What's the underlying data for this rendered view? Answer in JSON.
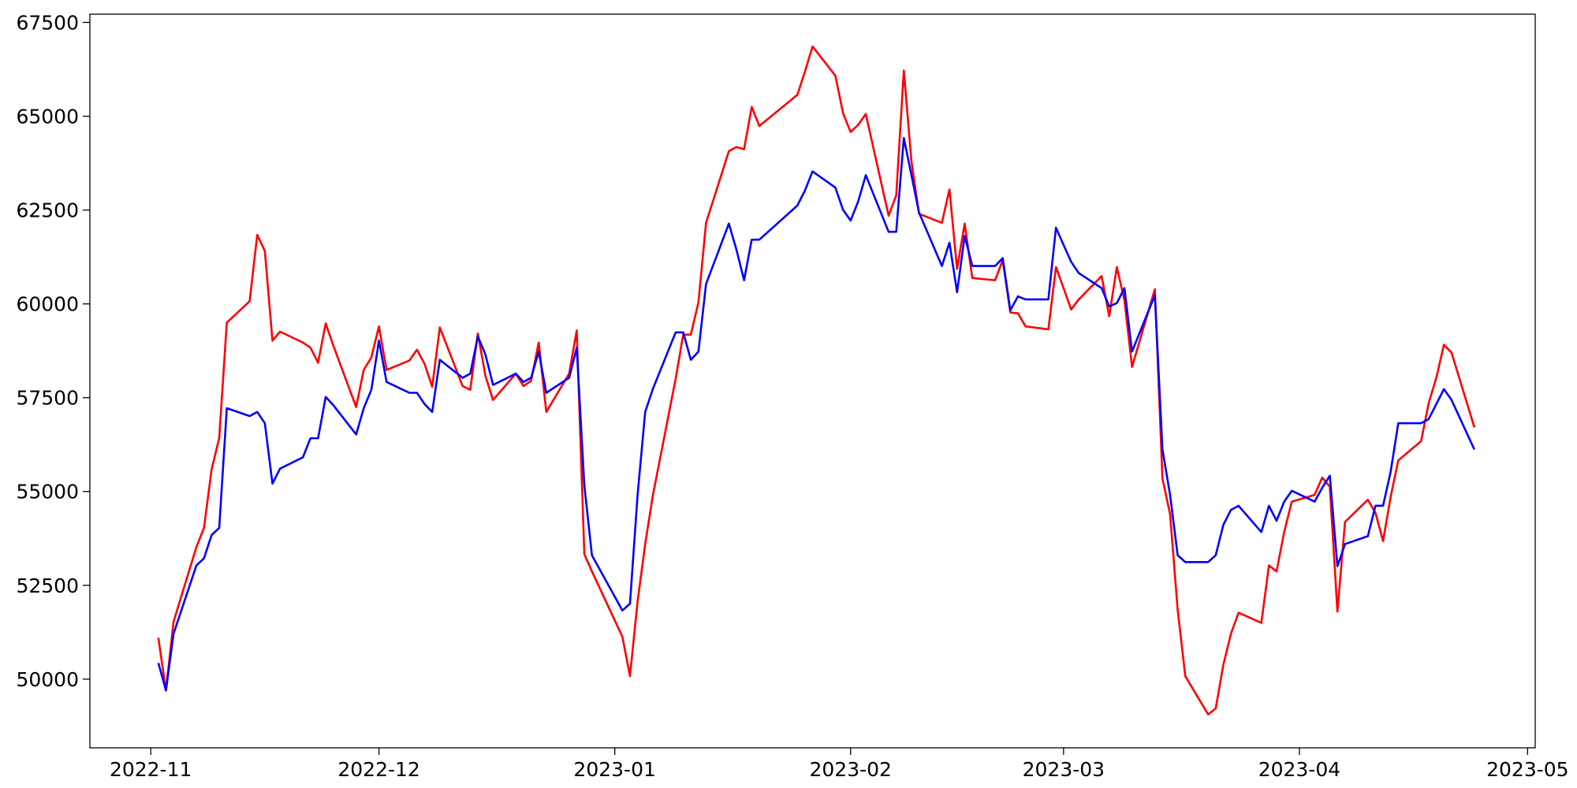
{
  "chart_data": {
    "type": "line",
    "x": [
      "2022-11-02",
      "2022-11-03",
      "2022-11-04",
      "2022-11-07",
      "2022-11-08",
      "2022-11-09",
      "2022-11-10",
      "2022-11-11",
      "2022-11-14",
      "2022-11-15",
      "2022-11-16",
      "2022-11-17",
      "2022-11-18",
      "2022-11-21",
      "2022-11-22",
      "2022-11-23",
      "2022-11-24",
      "2022-11-25",
      "2022-11-28",
      "2022-11-29",
      "2022-11-30",
      "2022-12-01",
      "2022-12-02",
      "2022-12-05",
      "2022-12-06",
      "2022-12-07",
      "2022-12-08",
      "2022-12-09",
      "2022-12-12",
      "2022-12-13",
      "2022-12-14",
      "2022-12-15",
      "2022-12-16",
      "2022-12-19",
      "2022-12-20",
      "2022-12-21",
      "2022-12-22",
      "2022-12-23",
      "2022-12-26",
      "2022-12-27",
      "2022-12-28",
      "2022-12-29",
      "2023-01-02",
      "2023-01-03",
      "2023-01-04",
      "2023-01-05",
      "2023-01-06",
      "2023-01-09",
      "2023-01-10",
      "2023-01-11",
      "2023-01-12",
      "2023-01-13",
      "2023-01-16",
      "2023-01-17",
      "2023-01-18",
      "2023-01-19",
      "2023-01-20",
      "2023-01-25",
      "2023-01-26",
      "2023-01-27",
      "2023-01-30",
      "2023-01-31",
      "2023-02-01",
      "2023-02-02",
      "2023-02-03",
      "2023-02-06",
      "2023-02-07",
      "2023-02-08",
      "2023-02-09",
      "2023-02-10",
      "2023-02-13",
      "2023-02-14",
      "2023-02-15",
      "2023-02-16",
      "2023-02-17",
      "2023-02-20",
      "2023-02-21",
      "2023-02-22",
      "2023-02-23",
      "2023-02-24",
      "2023-02-27",
      "2023-02-28",
      "2023-03-01",
      "2023-03-02",
      "2023-03-03",
      "2023-03-06",
      "2023-03-07",
      "2023-03-08",
      "2023-03-09",
      "2023-03-10",
      "2023-03-13",
      "2023-03-14",
      "2023-03-15",
      "2023-03-16",
      "2023-03-17",
      "2023-03-20",
      "2023-03-21",
      "2023-03-22",
      "2023-03-23",
      "2023-03-24",
      "2023-03-27",
      "2023-03-28",
      "2023-03-29",
      "2023-03-30",
      "2023-03-31",
      "2023-04-03",
      "2023-04-04",
      "2023-04-05",
      "2023-04-06",
      "2023-04-07",
      "2023-04-10",
      "2023-04-11",
      "2023-04-12",
      "2023-04-13",
      "2023-04-14",
      "2023-04-17",
      "2023-04-18",
      "2023-04-19",
      "2023-04-20",
      "2023-04-21",
      "2023-04-24"
    ],
    "series": [
      {
        "color": "#ff0000",
        "values": [
          51100,
          49700,
          51530,
          53520,
          54030,
          55590,
          56420,
          59500,
          60070,
          61840,
          61410,
          59020,
          59260,
          58970,
          58830,
          58430,
          59480,
          58890,
          57250,
          58240,
          58570,
          59400,
          58240,
          58490,
          58780,
          58400,
          57790,
          59370,
          57810,
          57710,
          59210,
          58080,
          57440,
          58140,
          57810,
          57950,
          58970,
          57120,
          58140,
          59290,
          53330,
          52870,
          51130,
          50080,
          52070,
          53600,
          54890,
          58000,
          59180,
          59180,
          60040,
          62160,
          64070,
          64180,
          64120,
          65250,
          64740,
          65570,
          66190,
          66860,
          66080,
          65090,
          64580,
          64770,
          65060,
          62350,
          62890,
          66220,
          63800,
          62400,
          62160,
          63050,
          60930,
          62140,
          60690,
          60630,
          61170,
          59770,
          59750,
          59400,
          59320,
          60980,
          60420,
          59850,
          60120,
          60740,
          59670,
          60980,
          60100,
          58320,
          60390,
          55340,
          54400,
          51850,
          50080,
          49060,
          49220,
          50380,
          51210,
          51770,
          51500,
          53030,
          52870,
          53920,
          54730,
          54910,
          55370,
          55130,
          51800,
          54190,
          54780,
          54430,
          53680,
          54860,
          55830,
          56340,
          57360,
          58030,
          58910,
          58700,
          56710
        ]
      },
      {
        "color": "#0000ff",
        "values": [
          50430,
          49700,
          51210,
          53030,
          53220,
          53840,
          54030,
          57220,
          57010,
          57120,
          56820,
          55210,
          55610,
          55910,
          56420,
          56420,
          57520,
          57300,
          56520,
          57220,
          57710,
          59020,
          57920,
          57630,
          57630,
          57330,
          57120,
          58510,
          58030,
          58140,
          59130,
          58650,
          57840,
          58140,
          57920,
          58030,
          58730,
          57630,
          58030,
          58830,
          55160,
          53300,
          51830,
          52010,
          54910,
          57120,
          57730,
          59240,
          59240,
          58510,
          58730,
          60530,
          62140,
          61440,
          60630,
          61710,
          61710,
          62620,
          63020,
          63530,
          63100,
          62510,
          62220,
          62730,
          63430,
          61920,
          61920,
          64420,
          63430,
          62430,
          61010,
          61630,
          60310,
          61810,
          61010,
          61010,
          61220,
          59830,
          60200,
          60120,
          60120,
          62030,
          61570,
          61120,
          60820,
          60420,
          59930,
          60020,
          60420,
          58730,
          60230,
          56120,
          54910,
          53300,
          53120,
          53120,
          53300,
          54110,
          54510,
          54620,
          53920,
          54620,
          54220,
          54730,
          55020,
          54730,
          55100,
          55420,
          53010,
          53600,
          53810,
          54620,
          54620,
          55530,
          56820,
          56820,
          56930,
          57330,
          57730,
          57440,
          56120
        ]
      }
    ],
    "xlim": [
      "2022-10-24",
      "2023-05-02"
    ],
    "xticks": [
      "2022-11",
      "2022-12",
      "2023-01",
      "2023-02",
      "2023-03",
      "2023-04",
      "2023-05"
    ],
    "ylim": [
      48170,
      67720
    ],
    "yticks": [
      50000,
      52500,
      55000,
      57500,
      60000,
      62500,
      65000,
      67500
    ]
  }
}
